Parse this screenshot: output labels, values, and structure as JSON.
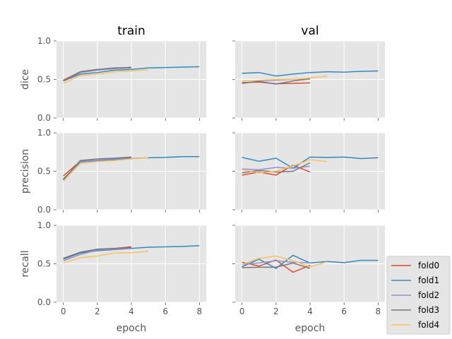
{
  "chart_data": {
    "type": "line",
    "layout": "3x2 subplot grid, shared x and y axes",
    "column_titles": [
      "train",
      "val"
    ],
    "row_labels": [
      "dice",
      "precision",
      "recall"
    ],
    "xlabel": "epoch",
    "xlim": [
      -0.4,
      8.4
    ],
    "xticks": [
      0,
      2,
      4,
      6,
      8
    ],
    "ylim": [
      0.0,
      1.0
    ],
    "yticks": [
      "0.0",
      "0.5",
      "1.0"
    ],
    "grid": true,
    "style": "ggplot",
    "legend_placement": "lower-right, outside the grid",
    "series_names": [
      "fold0",
      "fold1",
      "fold2",
      "fold3",
      "fold4"
    ],
    "series_colors": [
      "#E24A33",
      "#348ABD",
      "#988ED5",
      "#777777",
      "#FBC15E"
    ],
    "panels": [
      {
        "row": "dice",
        "col": "train",
        "series": [
          {
            "name": "fold0",
            "x": [
              0,
              1,
              2,
              3,
              4
            ],
            "values": [
              0.49,
              0.6,
              0.63,
              0.64,
              0.66
            ]
          },
          {
            "name": "fold1",
            "x": [
              0,
              1,
              2,
              3,
              4,
              5,
              6,
              7,
              8
            ],
            "values": [
              0.48,
              0.57,
              0.59,
              0.62,
              0.63,
              0.65,
              0.655,
              0.66,
              0.665
            ]
          },
          {
            "name": "fold2",
            "x": [
              0,
              1,
              2,
              3,
              4
            ],
            "values": [
              0.48,
              0.59,
              0.62,
              0.64,
              0.65
            ]
          },
          {
            "name": "fold3",
            "x": [
              0,
              1,
              2,
              3,
              4
            ],
            "values": [
              0.48,
              0.6,
              0.63,
              0.65,
              0.655
            ]
          },
          {
            "name": "fold4",
            "x": [
              0,
              1,
              2,
              3,
              4,
              5
            ],
            "values": [
              0.45,
              0.55,
              0.57,
              0.6,
              0.61,
              0.625
            ]
          }
        ]
      },
      {
        "row": "dice",
        "col": "val",
        "series": [
          {
            "name": "fold0",
            "x": [
              0,
              1,
              2,
              3,
              4
            ],
            "values": [
              0.46,
              0.465,
              0.445,
              0.45,
              0.455
            ]
          },
          {
            "name": "fold1",
            "x": [
              0,
              1,
              2,
              3,
              4,
              5,
              6,
              7,
              8
            ],
            "values": [
              0.58,
              0.59,
              0.545,
              0.57,
              0.59,
              0.6,
              0.595,
              0.605,
              0.61
            ]
          },
          {
            "name": "fold2",
            "x": [
              0,
              1,
              2,
              3,
              4
            ],
            "values": [
              0.45,
              0.48,
              0.49,
              0.5,
              0.505
            ]
          },
          {
            "name": "fold3",
            "x": [
              0,
              1,
              2,
              3,
              4
            ],
            "values": [
              0.45,
              0.475,
              0.44,
              0.48,
              0.51
            ]
          },
          {
            "name": "fold4",
            "x": [
              0,
              1,
              2,
              3,
              4,
              5
            ],
            "values": [
              0.48,
              0.49,
              0.5,
              0.5,
              0.52,
              0.545
            ]
          }
        ]
      },
      {
        "row": "precision",
        "col": "train",
        "series": [
          {
            "name": "fold0",
            "x": [
              0,
              1,
              2,
              3,
              4
            ],
            "values": [
              0.44,
              0.63,
              0.64,
              0.66,
              0.68
            ]
          },
          {
            "name": "fold1",
            "x": [
              0,
              1,
              2,
              3,
              4,
              5,
              6,
              7,
              8
            ],
            "values": [
              0.4,
              0.62,
              0.64,
              0.65,
              0.665,
              0.675,
              0.68,
              0.69,
              0.69
            ]
          },
          {
            "name": "fold2",
            "x": [
              0,
              1,
              2,
              3,
              4
            ],
            "values": [
              0.39,
              0.63,
              0.645,
              0.66,
              0.675
            ]
          },
          {
            "name": "fold3",
            "x": [
              0,
              1,
              2,
              3,
              4
            ],
            "values": [
              0.39,
              0.64,
              0.66,
              0.67,
              0.685
            ]
          },
          {
            "name": "fold4",
            "x": [
              0,
              1,
              2,
              3,
              4,
              5
            ],
            "values": [
              0.37,
              0.6,
              0.625,
              0.64,
              0.66,
              0.675
            ]
          }
        ]
      },
      {
        "row": "precision",
        "col": "val",
        "series": [
          {
            "name": "fold0",
            "x": [
              0,
              1,
              2,
              3,
              4
            ],
            "values": [
              0.45,
              0.49,
              0.45,
              0.58,
              0.49
            ]
          },
          {
            "name": "fold1",
            "x": [
              0,
              1,
              2,
              3,
              4,
              5,
              6,
              7,
              8
            ],
            "values": [
              0.68,
              0.63,
              0.67,
              0.54,
              0.685,
              0.68,
              0.685,
              0.665,
              0.675
            ]
          },
          {
            "name": "fold2",
            "x": [
              0,
              1,
              2,
              3,
              4
            ],
            "values": [
              0.53,
              0.52,
              0.55,
              0.54,
              0.565
            ]
          },
          {
            "name": "fold3",
            "x": [
              0,
              1,
              2,
              3,
              4
            ],
            "values": [
              0.48,
              0.51,
              0.49,
              0.5,
              0.61
            ]
          },
          {
            "name": "fold4",
            "x": [
              0,
              1,
              2,
              3,
              4,
              5
            ],
            "values": [
              0.52,
              0.48,
              0.5,
              0.57,
              0.65,
              0.625
            ]
          }
        ]
      },
      {
        "row": "recall",
        "col": "train",
        "series": [
          {
            "name": "fold0",
            "x": [
              0,
              1,
              2,
              3,
              4
            ],
            "values": [
              0.57,
              0.65,
              0.68,
              0.7,
              0.72
            ]
          },
          {
            "name": "fold1",
            "x": [
              0,
              1,
              2,
              3,
              4,
              5,
              6,
              7,
              8
            ],
            "values": [
              0.56,
              0.64,
              0.67,
              0.685,
              0.7,
              0.715,
              0.72,
              0.725,
              0.735
            ]
          },
          {
            "name": "fold2",
            "x": [
              0,
              1,
              2,
              3,
              4
            ],
            "values": [
              0.54,
              0.62,
              0.68,
              0.69,
              0.7
            ]
          },
          {
            "name": "fold3",
            "x": [
              0,
              1,
              2,
              3,
              4
            ],
            "values": [
              0.57,
              0.65,
              0.69,
              0.7,
              0.71
            ]
          },
          {
            "name": "fold4",
            "x": [
              0,
              1,
              2,
              3,
              4,
              5
            ],
            "values": [
              0.51,
              0.58,
              0.6,
              0.64,
              0.645,
              0.66
            ]
          }
        ]
      },
      {
        "row": "recall",
        "col": "val",
        "series": [
          {
            "name": "fold0",
            "x": [
              0,
              1,
              2,
              3,
              4
            ],
            "values": [
              0.52,
              0.47,
              0.55,
              0.39,
              0.48
            ]
          },
          {
            "name": "fold1",
            "x": [
              0,
              1,
              2,
              3,
              4,
              5,
              6,
              7,
              8
            ],
            "values": [
              0.46,
              0.56,
              0.44,
              0.61,
              0.51,
              0.53,
              0.515,
              0.545,
              0.545
            ]
          },
          {
            "name": "fold2",
            "x": [
              0,
              1,
              2,
              3,
              4
            ],
            "values": [
              0.49,
              0.51,
              0.54,
              0.52,
              0.51
            ]
          },
          {
            "name": "fold3",
            "x": [
              0,
              1,
              2,
              3,
              4
            ],
            "values": [
              0.45,
              0.455,
              0.455,
              0.51,
              0.44
            ]
          },
          {
            "name": "fold4",
            "x": [
              0,
              1,
              2,
              3,
              4,
              5
            ],
            "values": [
              0.49,
              0.57,
              0.6,
              0.54,
              0.46,
              0.525
            ]
          }
        ]
      }
    ]
  }
}
